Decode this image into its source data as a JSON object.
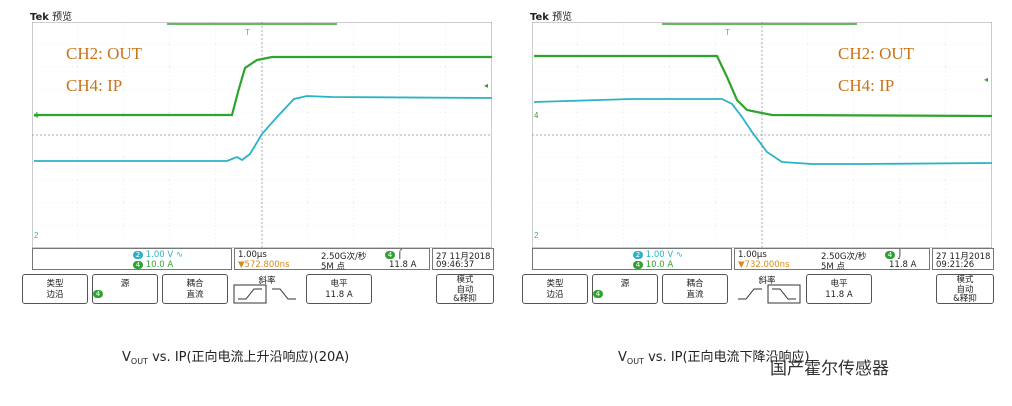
{
  "left": {
    "brand_tek": "Tek",
    "brand_mode": "预览",
    "anno_ch2": "CH2:  OUT",
    "anno_ch4": "CH4:  IP",
    "ch2_num": "2",
    "ch2_val": "1.00 V",
    "ch4_num": "4",
    "ch4_val": "10.0 A",
    "timebase": "1.00µs",
    "sample_rate": "2.50G次/秒",
    "trig_ch": "4",
    "trig_level": "11.8 A",
    "offset": "▼572.800ns",
    "points": "5M 点",
    "date": "27 11月2018",
    "time": "09:46:37",
    "btn_type_1": "类型",
    "btn_type_2": "边沿",
    "btn_source": "源",
    "btn_source_ch": "4",
    "btn_coupling_1": "耦合",
    "btn_coupling_2": "直流",
    "btn_slope": "斜率",
    "btn_level_1": "电平",
    "btn_level_2": "11.8 A",
    "btn_mode_1": "模式",
    "btn_mode_2": "自动",
    "btn_mode_3": "&释抑",
    "caption_v": "V",
    "caption_sub": "OUT",
    "caption_rest": " vs. IP(正向电流上升沿响应)(20A)"
  },
  "right": {
    "brand_tek": "Tek",
    "brand_mode": "预览",
    "anno_ch2": "CH2:  OUT",
    "anno_ch4": "CH4:  IP",
    "ch2_num": "2",
    "ch2_val": "1.00 V",
    "ch4_num": "4",
    "ch4_val": "10.0 A",
    "timebase": "1.00µs",
    "sample_rate": "2.50G次/秒",
    "trig_ch": "4",
    "trig_level": "11.8 A",
    "offset": "▼732.000ns",
    "points": "5M 点",
    "date": "27 11月2018",
    "time": "09:21:26",
    "btn_type_1": "类型",
    "btn_type_2": "边沿",
    "btn_source": "源",
    "btn_source_ch": "4",
    "btn_coupling_1": "耦合",
    "btn_coupling_2": "直流",
    "btn_slope": "斜率",
    "btn_level_1": "电平",
    "btn_level_2": "11.8 A",
    "btn_mode_1": "模式",
    "btn_mode_2": "自动",
    "btn_mode_3": "&释抑",
    "caption_v": "V",
    "caption_sub": "OUT",
    "caption_rest": " vs. IP(正向电流下降沿响应)"
  },
  "watermark": "国产霍尔传感器",
  "colors": {
    "ch2": "#2ab3c6",
    "ch4": "#2fa32f",
    "annotation": "#c8741a"
  }
}
